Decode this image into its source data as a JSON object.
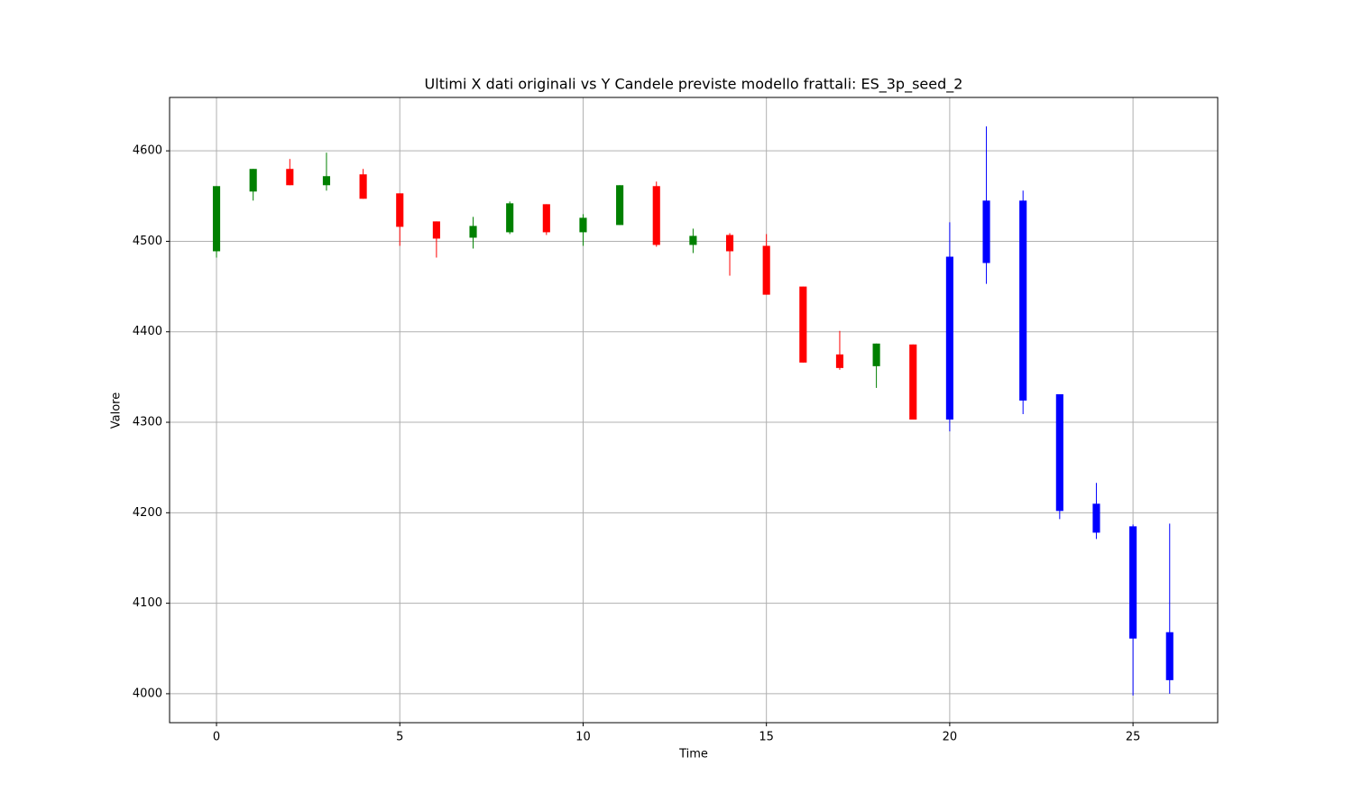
{
  "chart_data": {
    "type": "candlestick",
    "title": "Ultimi X dati originali vs Y Candele previste modello frattali: ES_3p_seed_2",
    "x_label": "Time",
    "y_label": "Valore",
    "x": [
      0,
      1,
      2,
      3,
      4,
      5,
      6,
      7,
      8,
      9,
      10,
      11,
      12,
      13,
      14,
      15,
      16,
      17,
      18,
      19,
      20,
      21,
      22,
      23,
      24,
      25,
      26
    ],
    "open": [
      4489,
      4555,
      4580,
      4562,
      4574,
      4553,
      4522,
      4504,
      4510,
      4541,
      4510,
      4518,
      4561,
      4496,
      4507,
      4495,
      4450,
      4375,
      4362,
      4386,
      4303,
      4476,
      4545,
      4331,
      4210,
      4185,
      4068
    ],
    "high": [
      4561,
      4580,
      4591,
      4598,
      4580,
      4553,
      4522,
      4527,
      4544,
      4541,
      4530,
      4562,
      4566,
      4514,
      4509,
      4508,
      4450,
      4401,
      4387,
      4386,
      4521,
      4627,
      4556,
      4331,
      4233,
      4187,
      4188
    ],
    "low": [
      4482,
      4545,
      4562,
      4556,
      4547,
      4495,
      4482,
      4492,
      4508,
      4507,
      4495,
      4518,
      4494,
      4487,
      4462,
      4441,
      4366,
      4358,
      4338,
      4303,
      4290,
      4453,
      4309,
      4193,
      4171,
      3998,
      4000
    ],
    "close": [
      4561,
      4580,
      4562,
      4572,
      4547,
      4516,
      4503,
      4517,
      4542,
      4510,
      4526,
      4562,
      4496,
      4506,
      4489,
      4441,
      4366,
      4360,
      4387,
      4303,
      4483,
      4545,
      4324,
      4202,
      4178,
      4061,
      4015
    ],
    "colors": [
      "green",
      "green",
      "red",
      "green",
      "red",
      "red",
      "red",
      "green",
      "green",
      "red",
      "green",
      "green",
      "red",
      "green",
      "red",
      "red",
      "red",
      "red",
      "green",
      "red",
      "blue",
      "blue",
      "blue",
      "blue",
      "blue",
      "blue",
      "blue"
    ],
    "xlim": [
      -1.28,
      27.31
    ],
    "ylim": [
      3968,
      4659
    ],
    "xticks": [
      0,
      5,
      10,
      15,
      20,
      25
    ],
    "yticks": [
      4000,
      4100,
      4200,
      4300,
      4400,
      4500,
      4600
    ],
    "grid": true
  }
}
